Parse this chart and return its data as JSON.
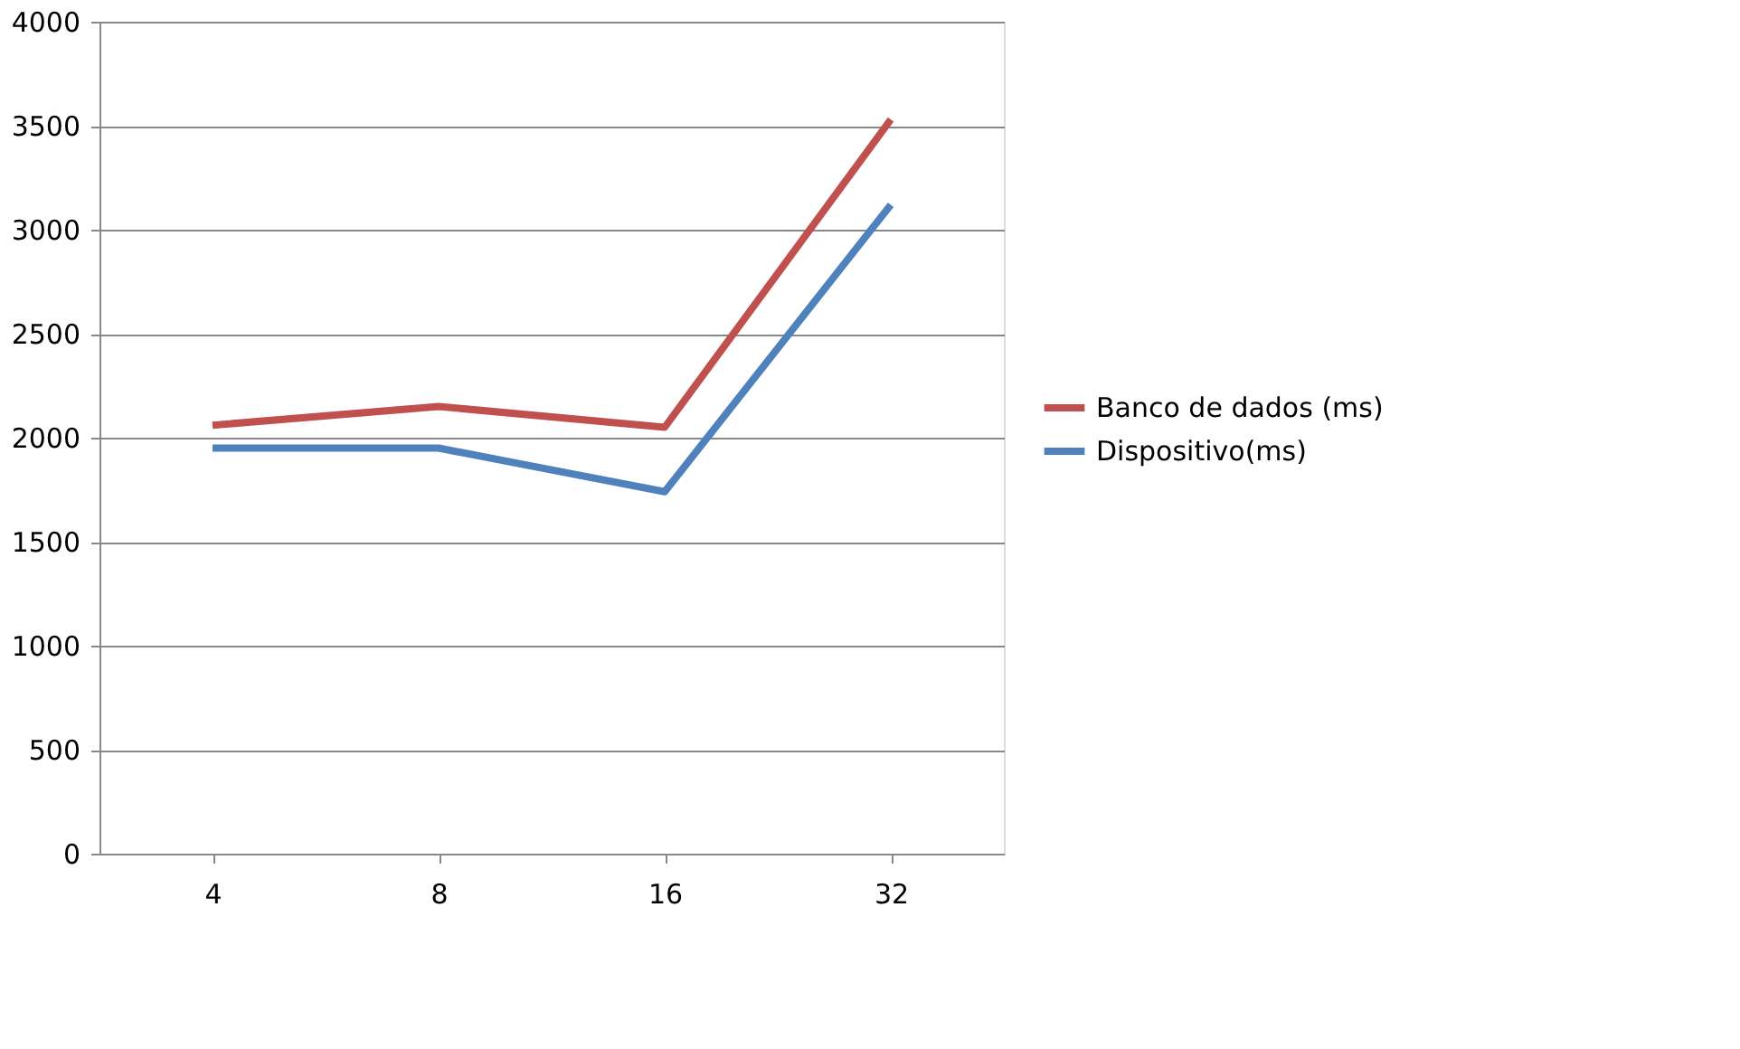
{
  "chart_data": {
    "type": "line",
    "categories": [
      "4",
      "8",
      "16",
      "32"
    ],
    "series": [
      {
        "name": "Banco de dados (ms)",
        "color": "#c0504d",
        "values": [
          2060,
          2150,
          2050,
          3530
        ]
      },
      {
        "name": "Dispositivo(ms)",
        "color": "#4f81bd",
        "values": [
          1950,
          1950,
          1740,
          3120
        ]
      }
    ],
    "ylim": [
      0,
      4000
    ],
    "yticks": [
      0,
      500,
      1000,
      1500,
      2000,
      2500,
      3000,
      3500,
      4000
    ],
    "grid": "y",
    "legend": "right",
    "marker": "none",
    "line_style": "solid"
  }
}
